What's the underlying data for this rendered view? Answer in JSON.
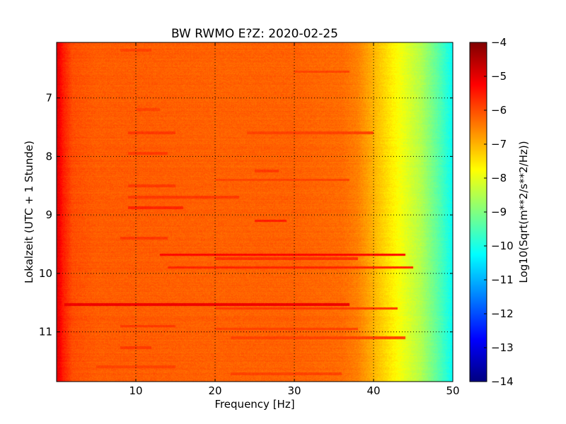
{
  "chart_data": {
    "type": "heatmap",
    "title": "BW RWMO E?Z: 2020-02-25",
    "xlabel": "Frequency [Hz]",
    "ylabel": "Lokalzeit (UTC + 1 Stunde)",
    "xlim": [
      0,
      50
    ],
    "ylim": [
      11.85,
      6.05
    ],
    "y_inverted": true,
    "x_ticks": [
      10,
      20,
      30,
      40,
      50
    ],
    "x_tick_labels": [
      "10",
      "20",
      "30",
      "40",
      "50"
    ],
    "y_ticks": [
      7,
      8,
      9,
      10,
      11
    ],
    "y_tick_labels": [
      "7",
      "8",
      "9",
      "10",
      "11"
    ],
    "grid": true,
    "colormap": "jet",
    "colorbar": {
      "label": "Log10(Sqrt(m**2/s**2/Hz))",
      "range": [
        -14,
        -4
      ],
      "ticks": [
        -4,
        -5,
        -6,
        -7,
        -8,
        -9,
        -10,
        -11,
        -12,
        -13,
        -14
      ],
      "tick_labels": [
        "−4",
        "−5",
        "−6",
        "−7",
        "−8",
        "−9",
        "−10",
        "−11",
        "−12",
        "−13",
        "−14"
      ]
    },
    "spectral_profile": {
      "frequency_hz": [
        0,
        0.3,
        0.8,
        2,
        5,
        10,
        20,
        30,
        36,
        38,
        40,
        42,
        44,
        46,
        48,
        50
      ],
      "log_amplitude": [
        -4.9,
        -5.1,
        -5.5,
        -6.0,
        -6.15,
        -6.15,
        -6.2,
        -6.2,
        -6.3,
        -6.5,
        -7.0,
        -7.5,
        -8.0,
        -8.5,
        -9.3,
        -10.2
      ]
    },
    "horizontal_bands": [
      {
        "time": 6.18,
        "f_start": 8,
        "f_end": 12,
        "log_amplitude": -5.9
      },
      {
        "time": 6.55,
        "f_start": 30,
        "f_end": 37,
        "log_amplitude": -5.9
      },
      {
        "time": 7.2,
        "f_start": 10,
        "f_end": 13,
        "log_amplitude": -5.9
      },
      {
        "time": 7.6,
        "f_start": 9,
        "f_end": 15,
        "log_amplitude": -5.8
      },
      {
        "time": 7.6,
        "f_start": 24,
        "f_end": 40,
        "log_amplitude": -5.9
      },
      {
        "time": 7.95,
        "f_start": 9,
        "f_end": 14,
        "log_amplitude": -5.8
      },
      {
        "time": 8.25,
        "f_start": 25,
        "f_end": 28,
        "log_amplitude": -5.8
      },
      {
        "time": 8.4,
        "f_start": 20,
        "f_end": 37,
        "log_amplitude": -5.9
      },
      {
        "time": 8.5,
        "f_start": 9,
        "f_end": 15,
        "log_amplitude": -5.8
      },
      {
        "time": 8.7,
        "f_start": 9,
        "f_end": 23,
        "log_amplitude": -5.8
      },
      {
        "time": 8.88,
        "f_start": 9,
        "f_end": 16,
        "log_amplitude": -5.6
      },
      {
        "time": 9.1,
        "f_start": 25,
        "f_end": 29,
        "log_amplitude": -5.5
      },
      {
        "time": 9.4,
        "f_start": 8,
        "f_end": 14,
        "log_amplitude": -5.8
      },
      {
        "time": 9.68,
        "f_start": 13,
        "f_end": 44,
        "log_amplitude": -5.3
      },
      {
        "time": 9.75,
        "f_start": 20,
        "f_end": 38,
        "log_amplitude": -5.7
      },
      {
        "time": 9.9,
        "f_start": 14,
        "f_end": 45,
        "log_amplitude": -5.6
      },
      {
        "time": 10.53,
        "f_start": 1,
        "f_end": 37,
        "log_amplitude": -5.1
      },
      {
        "time": 10.6,
        "f_start": 20,
        "f_end": 43,
        "log_amplitude": -5.8
      },
      {
        "time": 10.9,
        "f_start": 8,
        "f_end": 15,
        "log_amplitude": -5.8
      },
      {
        "time": 10.95,
        "f_start": 20,
        "f_end": 38,
        "log_amplitude": -5.9
      },
      {
        "time": 11.1,
        "f_start": 22,
        "f_end": 44,
        "log_amplitude": -5.9
      },
      {
        "time": 11.27,
        "f_start": 8,
        "f_end": 12,
        "log_amplitude": -5.8
      },
      {
        "time": 11.6,
        "f_start": 5,
        "f_end": 15,
        "log_amplitude": -5.9
      },
      {
        "time": 11.72,
        "f_start": 22,
        "f_end": 36,
        "log_amplitude": -5.9
      }
    ]
  }
}
